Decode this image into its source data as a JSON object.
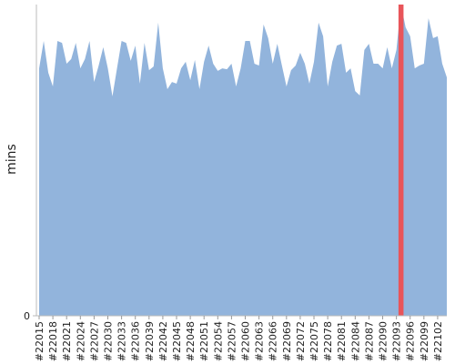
{
  "chart_data": {
    "type": "area",
    "y_label": "mins",
    "categories": [
      "#22015",
      null,
      null,
      "#22018",
      null,
      null,
      "#22021",
      null,
      null,
      "#22024",
      null,
      null,
      "#22027",
      null,
      null,
      "#22030",
      null,
      null,
      "#22033",
      null,
      null,
      "#22036",
      null,
      null,
      "#22039",
      null,
      null,
      "#22042",
      null,
      null,
      "#22045",
      null,
      null,
      "#22048",
      null,
      null,
      "#22051",
      null,
      null,
      "#22054",
      null,
      null,
      "#22057",
      null,
      null,
      "#22060",
      null,
      null,
      "#22063",
      null,
      null,
      "#22066",
      null,
      null,
      "#22069",
      null,
      null,
      "#22072",
      null,
      null,
      "#22075",
      null,
      null,
      "#22078",
      null,
      null,
      "#22081",
      null,
      null,
      "#22084",
      null,
      null,
      "#22087",
      null,
      null,
      "#22090",
      null,
      null,
      "#22093",
      null,
      null,
      "#22096",
      null,
      null,
      "#22099",
      null,
      null,
      "#22102",
      null,
      null
    ],
    "series": [
      {
        "type": "area",
        "color": "#92b4dc",
        "values": [
          79.5,
          88.3,
          78.1,
          73.7,
          88.3,
          87.7,
          81.0,
          82.5,
          87.7,
          79.5,
          82.5,
          88.3,
          75.1,
          80.4,
          86.3,
          79.5,
          70.5,
          79.5,
          88.3,
          87.7,
          81.9,
          86.8,
          74.6,
          87.7,
          78.9,
          80.1,
          94.2,
          79.5,
          72.8,
          75.1,
          74.6,
          79.5,
          81.6,
          75.7,
          82.2,
          72.8,
          81.6,
          86.8,
          81.0,
          78.7,
          79.5,
          79.2,
          81.0,
          73.7,
          79.5,
          88.3,
          88.3,
          81.0,
          80.4,
          93.6,
          89.2,
          81.0,
          87.4,
          80.4,
          73.7,
          78.9,
          80.4,
          84.5,
          81.0,
          74.6,
          81.6,
          94.2,
          89.8,
          73.7,
          81.6,
          86.8,
          87.4,
          78.1,
          79.5,
          72.2,
          70.8,
          85.4,
          87.4,
          81.0,
          81.0,
          79.5,
          86.3,
          79.5,
          85.4,
          100,
          92.7,
          89.8,
          79.5,
          80.4,
          81.0,
          95.6,
          89.2,
          89.8,
          81.0,
          76.6
        ]
      },
      {
        "type": "bar",
        "color": "#e8555a",
        "values": [
          null,
          null,
          null,
          null,
          null,
          null,
          null,
          null,
          null,
          null,
          null,
          null,
          null,
          null,
          null,
          null,
          null,
          null,
          null,
          null,
          null,
          null,
          null,
          null,
          null,
          null,
          null,
          null,
          null,
          null,
          null,
          null,
          null,
          null,
          null,
          null,
          null,
          null,
          null,
          null,
          null,
          null,
          null,
          null,
          null,
          null,
          null,
          null,
          null,
          null,
          null,
          null,
          null,
          null,
          null,
          null,
          null,
          null,
          null,
          null,
          null,
          null,
          null,
          null,
          null,
          null,
          null,
          null,
          null,
          null,
          null,
          null,
          null,
          null,
          null,
          null,
          null,
          null,
          null,
          100,
          null,
          null,
          null,
          null,
          null,
          null,
          null,
          null,
          null,
          null
        ]
      }
    ],
    "ylim": [
      0,
      100
    ],
    "yticks": [
      0
    ],
    "grid": false
  }
}
